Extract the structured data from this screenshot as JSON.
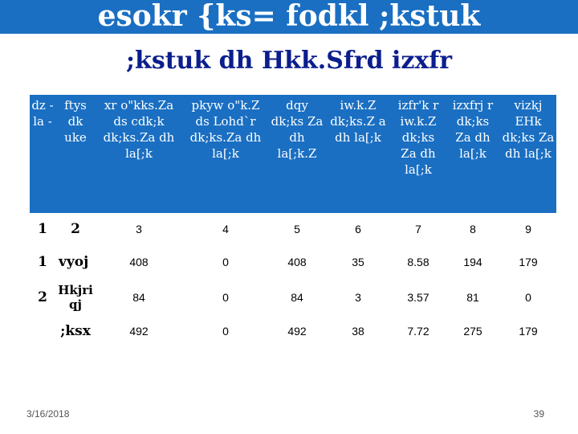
{
  "slide": {
    "title": "esokr {ks= fodkl ;kstuk",
    "subtitle": ";kstuk dh Hkk.Sfrd izxfr"
  },
  "table": {
    "headers": [
      "dz - la -",
      "ftys dk uke",
      "xr o\"kks.Za ds cdk;k dk;ks.Za dh la[;k",
      "pkyw o\"k.Z ds Lohd`r dk;ks.Za dh la[;k",
      "dqy dk;ks Za dh la[;k.Z",
      "iw.k.Z dk;ks.Z a dh la[;k",
      "izfr'k r iw.k.Z dk;ks Za dh la[;k",
      "izxfrj r dk;ks Za dh la[;k",
      "vizkj EHk dk;ks Za dh la[;k"
    ],
    "rows": [
      [
        "1",
        "2",
        "3",
        "4",
        "5",
        "6",
        "7",
        "8",
        "9"
      ],
      [
        "1",
        "vyoj",
        "408",
        "0",
        "408",
        "35",
        "8.58",
        "194",
        "179"
      ],
      [
        "2",
        "Hkjri qj",
        "84",
        "0",
        "84",
        "3",
        "3.57",
        "81",
        "0"
      ],
      [
        "",
        ";ksx",
        "492",
        "0",
        "492",
        "38",
        "7.72",
        "275",
        "179"
      ]
    ]
  },
  "footer": {
    "date": "3/16/2018",
    "page": "39"
  },
  "colors": {
    "accent": "#1a6fc2",
    "subtitle": "#0b1e8c"
  }
}
